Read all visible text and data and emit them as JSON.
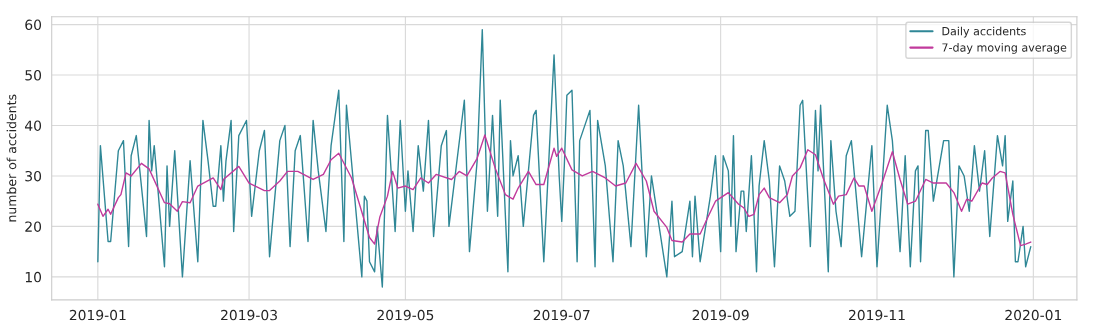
{
  "chart_data": {
    "type": "line",
    "ylabel": "number of accidents",
    "x": [
      "2019-01-01",
      "2019-01-02",
      "2019-01-05",
      "2019-01-06",
      "2019-01-09",
      "2019-01-11",
      "2019-01-13",
      "2019-01-14",
      "2019-01-16",
      "2019-01-20",
      "2019-01-21",
      "2019-01-22",
      "2019-01-23",
      "2019-01-27",
      "2019-01-28",
      "2019-01-29",
      "2019-01-31",
      "2019-02-03",
      "2019-02-06",
      "2019-02-09",
      "2019-02-11",
      "2019-02-13",
      "2019-02-15",
      "2019-02-16",
      "2019-02-18",
      "2019-02-19",
      "2019-02-20",
      "2019-02-22",
      "2019-02-23",
      "2019-02-25",
      "2019-02-28",
      "2019-03-02",
      "2019-03-05",
      "2019-03-07",
      "2019-03-09",
      "2019-03-13",
      "2019-03-15",
      "2019-03-17",
      "2019-03-19",
      "2019-03-21",
      "2019-03-24",
      "2019-03-26",
      "2019-03-28",
      "2019-03-31",
      "2019-04-02",
      "2019-04-05",
      "2019-04-07",
      "2019-04-08",
      "2019-04-14",
      "2019-04-15",
      "2019-04-16",
      "2019-04-17",
      "2019-04-19",
      "2019-04-20",
      "2019-04-22",
      "2019-04-24",
      "2019-04-27",
      "2019-04-29",
      "2019-05-01",
      "2019-05-02",
      "2019-05-04",
      "2019-05-06",
      "2019-05-08",
      "2019-05-10",
      "2019-05-12",
      "2019-05-15",
      "2019-05-17",
      "2019-05-18",
      "2019-05-24",
      "2019-05-26",
      "2019-05-29",
      "2019-05-31",
      "2019-06-02",
      "2019-06-04",
      "2019-06-06",
      "2019-06-07",
      "2019-06-10",
      "2019-06-11",
      "2019-06-12",
      "2019-06-14",
      "2019-06-16",
      "2019-06-20",
      "2019-06-21",
      "2019-06-24",
      "2019-06-28",
      "2019-06-30",
      "2019-07-01",
      "2019-07-02",
      "2019-07-03",
      "2019-07-05",
      "2019-07-07",
      "2019-07-08",
      "2019-07-12",
      "2019-07-14",
      "2019-07-15",
      "2019-07-18",
      "2019-07-21",
      "2019-07-23",
      "2019-07-25",
      "2019-07-28",
      "2019-07-31",
      "2019-08-03",
      "2019-08-05",
      "2019-08-11",
      "2019-08-13",
      "2019-08-14",
      "2019-08-17",
      "2019-08-20",
      "2019-08-21",
      "2019-08-22",
      "2019-08-24",
      "2019-08-28",
      "2019-08-30",
      "2019-09-01",
      "2019-09-02",
      "2019-09-04",
      "2019-09-05",
      "2019-09-06",
      "2019-09-07",
      "2019-09-09",
      "2019-09-10",
      "2019-09-11",
      "2019-09-13",
      "2019-09-15",
      "2019-09-16",
      "2019-09-18",
      "2019-09-20",
      "2019-09-22",
      "2019-09-24",
      "2019-09-26",
      "2019-09-28",
      "2019-09-30",
      "2019-10-02",
      "2019-10-03",
      "2019-10-06",
      "2019-10-08",
      "2019-10-09",
      "2019-10-10",
      "2019-10-13",
      "2019-10-14",
      "2019-10-16",
      "2019-10-18",
      "2019-10-20",
      "2019-10-22",
      "2019-10-26",
      "2019-10-30",
      "2019-11-01",
      "2019-11-05",
      "2019-11-07",
      "2019-11-10",
      "2019-11-12",
      "2019-11-14",
      "2019-11-16",
      "2019-11-17",
      "2019-11-18",
      "2019-11-20",
      "2019-11-21",
      "2019-11-23",
      "2019-11-27",
      "2019-11-29",
      "2019-12-01",
      "2019-12-03",
      "2019-12-05",
      "2019-12-07",
      "2019-12-09",
      "2019-12-11",
      "2019-12-13",
      "2019-12-15",
      "2019-12-18",
      "2019-12-20",
      "2019-12-21",
      "2019-12-22",
      "2019-12-24",
      "2019-12-25",
      "2019-12-26",
      "2019-12-28",
      "2019-12-29",
      "2019-12-31"
    ],
    "series": [
      {
        "name": "Daily accidents",
        "color": "#2f8796",
        "values": [
          13,
          36,
          17,
          17,
          35,
          37,
          16,
          34,
          38,
          18,
          41,
          31,
          36,
          12,
          32,
          20,
          35,
          10,
          33,
          13,
          41,
          33,
          24,
          24,
          36,
          25,
          33,
          41,
          19,
          38,
          41,
          22,
          35,
          39,
          14,
          37,
          40,
          16,
          35,
          38,
          17,
          41,
          31,
          19,
          36,
          47,
          17,
          44,
          10,
          26,
          25,
          13,
          11,
          20,
          8,
          42,
          19,
          41,
          23,
          31,
          19,
          36,
          27,
          41,
          18,
          36,
          39,
          20,
          45,
          15,
          33,
          59,
          23,
          42,
          22,
          45,
          11,
          37,
          30,
          34,
          20,
          42,
          43,
          13,
          54,
          30,
          21,
          32,
          46,
          47,
          13,
          37,
          43,
          12,
          41,
          32,
          13,
          37,
          32,
          16,
          44,
          14,
          30,
          10,
          25,
          14,
          15,
          25,
          14,
          26,
          13,
          26,
          34,
          15,
          34,
          31,
          20,
          38,
          15,
          27,
          27,
          19,
          34,
          11,
          28,
          37,
          29,
          12,
          32,
          29,
          22,
          23,
          44,
          45,
          16,
          43,
          31,
          44,
          11,
          37,
          23,
          16,
          34,
          37,
          14,
          36,
          12,
          44,
          37,
          15,
          34,
          12,
          31,
          32,
          13,
          39,
          39,
          25,
          37,
          37,
          10,
          32,
          30,
          23,
          36,
          27,
          35,
          18,
          38,
          32,
          38,
          21,
          29,
          13,
          13,
          20,
          12,
          16
        ]
      },
      {
        "name": "7-day moving average",
        "color": "#c13a9c",
        "x": [
          "2019-01-01",
          "2019-01-03",
          "2019-01-05",
          "2019-01-06",
          "2019-01-09",
          "2019-01-10",
          "2019-01-12",
          "2019-01-14",
          "2019-01-18",
          "2019-01-21",
          "2019-01-27",
          "2019-01-29",
          "2019-02-01",
          "2019-02-03",
          "2019-02-06",
          "2019-02-09",
          "2019-02-15",
          "2019-02-18",
          "2019-02-19",
          "2019-02-25",
          "2019-03-01",
          "2019-03-07",
          "2019-03-09",
          "2019-03-13",
          "2019-03-16",
          "2019-03-20",
          "2019-03-26",
          "2019-03-30",
          "2019-04-02",
          "2019-04-05",
          "2019-04-10",
          "2019-04-17",
          "2019-04-19",
          "2019-04-21",
          "2019-04-24",
          "2019-04-26",
          "2019-04-28",
          "2019-05-01",
          "2019-05-04",
          "2019-05-07",
          "2019-05-10",
          "2019-05-13",
          "2019-05-19",
          "2019-05-22",
          "2019-05-25",
          "2019-05-29",
          "2019-06-01",
          "2019-06-05",
          "2019-06-09",
          "2019-06-12",
          "2019-06-14",
          "2019-06-18",
          "2019-06-21",
          "2019-06-24",
          "2019-06-28",
          "2019-06-29",
          "2019-07-01",
          "2019-07-05",
          "2019-07-09",
          "2019-07-13",
          "2019-07-18",
          "2019-07-22",
          "2019-07-26",
          "2019-07-30",
          "2019-08-03",
          "2019-08-06",
          "2019-08-11",
          "2019-08-13",
          "2019-08-17",
          "2019-08-20",
          "2019-08-24",
          "2019-08-27",
          "2019-08-30",
          "2019-09-04",
          "2019-09-08",
          "2019-09-10",
          "2019-09-12",
          "2019-09-14",
          "2019-09-16",
          "2019-09-18",
          "2019-09-20",
          "2019-09-24",
          "2019-09-27",
          "2019-09-29",
          "2019-10-02",
          "2019-10-05",
          "2019-10-08",
          "2019-10-11",
          "2019-10-15",
          "2019-10-17",
          "2019-10-20",
          "2019-10-23",
          "2019-10-25",
          "2019-10-27",
          "2019-10-30",
          "2019-11-03",
          "2019-11-07",
          "2019-11-10",
          "2019-11-13",
          "2019-11-16",
          "2019-11-20",
          "2019-11-23",
          "2019-11-28",
          "2019-12-01",
          "2019-12-04",
          "2019-12-06",
          "2019-12-08",
          "2019-12-12",
          "2019-12-14",
          "2019-12-16",
          "2019-12-19",
          "2019-12-21",
          "2019-12-24",
          "2019-12-27",
          "2019-12-29",
          "2019-12-31"
        ],
        "values": [
          24.4,
          22,
          23.4,
          22.4,
          25.7,
          26.3,
          30.6,
          30,
          32.5,
          31.4,
          24.7,
          24.5,
          23,
          24.9,
          24.7,
          28,
          29.6,
          27.3,
          29.3,
          31.9,
          28.6,
          27.1,
          27.1,
          29,
          30.9,
          30.9,
          29.3,
          30.3,
          33.2,
          34.5,
          29.6,
          17.8,
          16.5,
          21.8,
          26,
          30.9,
          27.6,
          28,
          27.3,
          29.6,
          28.6,
          30.3,
          29.3,
          30.9,
          30,
          33.5,
          38.1,
          31.6,
          26.3,
          25.4,
          27.6,
          30.9,
          28.3,
          28.3,
          35.5,
          33.9,
          35.5,
          31.2,
          30,
          30.9,
          29.6,
          28,
          28.6,
          32.5,
          29,
          23,
          19.8,
          17.2,
          16.9,
          18.5,
          18.5,
          21.8,
          25,
          26.7,
          24.4,
          23.7,
          22,
          22.4,
          26.3,
          27.6,
          25.7,
          24.7,
          26.3,
          30,
          31.6,
          35.2,
          34.2,
          29.6,
          24.4,
          26,
          26.3,
          29.6,
          28,
          28,
          23,
          28.6,
          34.8,
          29.3,
          24.4,
          25,
          29.3,
          28.6,
          28.6,
          26.7,
          23,
          25.4,
          25,
          28.6,
          28.3,
          29.6,
          30.9,
          30.6,
          22.4,
          16.2,
          16.5,
          16.9
        ]
      }
    ],
    "xlim": [
      "2018-12-14",
      "2020-01-18"
    ],
    "xticks": [
      {
        "value": "2019-01-01",
        "label": "2019-01"
      },
      {
        "value": "2019-03-01",
        "label": "2019-03"
      },
      {
        "value": "2019-05-01",
        "label": "2019-05"
      },
      {
        "value": "2019-07-01",
        "label": "2019-07"
      },
      {
        "value": "2019-09-01",
        "label": "2019-09"
      },
      {
        "value": "2019-11-01",
        "label": "2019-11"
      },
      {
        "value": "2020-01-01",
        "label": "2020-01"
      }
    ],
    "ylim": [
      5.45,
      61.55
    ],
    "yticks": [
      10,
      20,
      30,
      40,
      50,
      60
    ],
    "grid": true,
    "legend": "top right"
  }
}
